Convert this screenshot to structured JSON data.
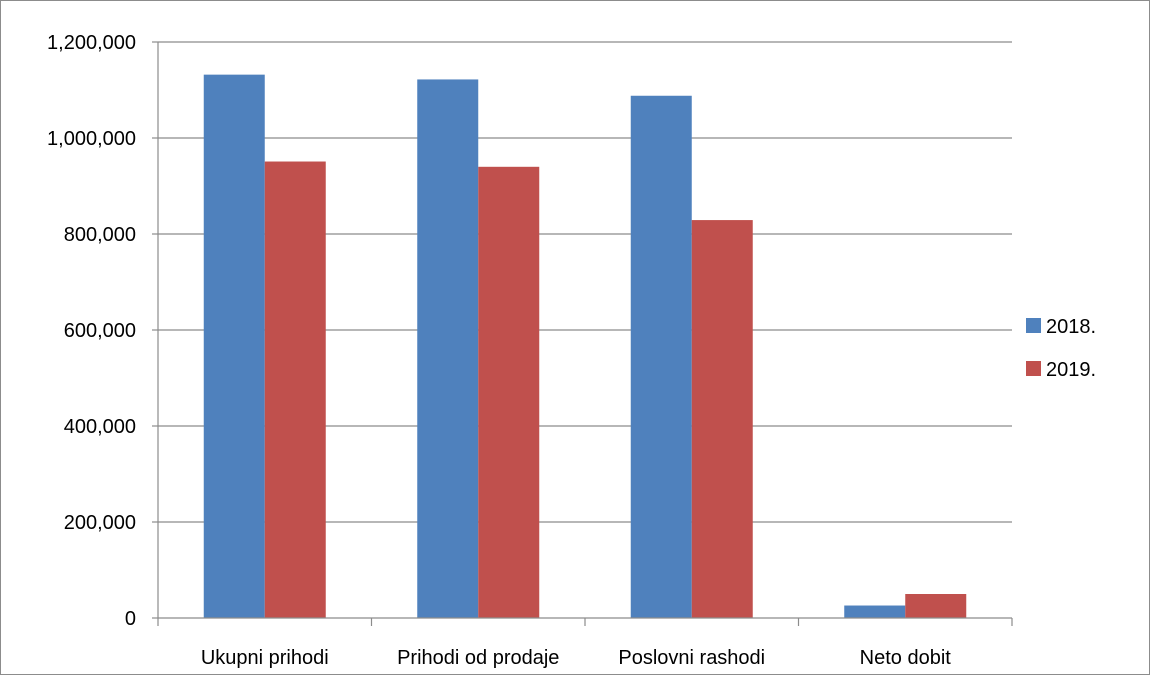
{
  "chart_data": {
    "type": "bar",
    "title": "",
    "xlabel": "",
    "ylabel": "",
    "categories": [
      "Ukupni prihodi",
      "Prihodi od prodaje",
      "Poslovni rashodi",
      "Neto dobit"
    ],
    "series": [
      {
        "name": "2018.",
        "color": "#4f81bd",
        "values": [
          1132000,
          1122000,
          1088000,
          26000
        ]
      },
      {
        "name": "2019.",
        "color": "#c0504d",
        "values": [
          951000,
          940000,
          829000,
          50000
        ]
      }
    ],
    "ylim": [
      0,
      1200000
    ],
    "yticks": [
      0,
      200000,
      400000,
      600000,
      800000,
      1000000,
      1200000
    ],
    "ytick_labels": [
      "0",
      "200,000",
      "400,000",
      "600,000",
      "800,000",
      "1,000,000",
      "1,200,000"
    ],
    "grid": true,
    "legend_position": "right"
  }
}
